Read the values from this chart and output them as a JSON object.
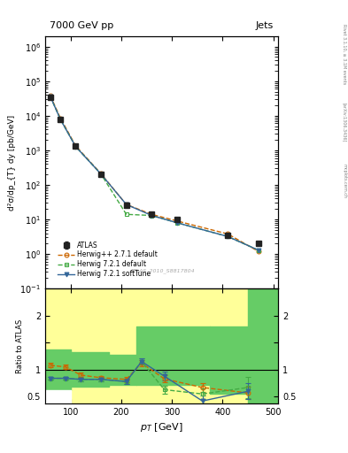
{
  "title_left": "7000 GeV pp",
  "title_right": "Jets",
  "right_label_top": "Rivet 3.1.10, ≥ 3.1M events",
  "right_label_mid": "[arXiv:1306.3436]",
  "right_label_bot": "mcplots.cern.ch",
  "watermark": "ATLAS_2010_S8817804",
  "xlabel": "p_{T} [GeV]",
  "ylabel_main": "d²σ/dp_{T} dy [pb/GeV]",
  "ylabel_ratio": "Ratio to ATLAS",
  "xlim": [
    50,
    510
  ],
  "ylim_main": [
    0.1,
    2000000
  ],
  "ylim_ratio": [
    0.38,
    2.5
  ],
  "atlas_x": [
    60,
    80,
    110,
    160,
    210,
    260,
    310,
    410,
    470
  ],
  "atlas_y": [
    35000,
    8000,
    1300,
    200,
    25,
    14,
    10,
    3.5,
    2.0
  ],
  "atlas_yerr": [
    1500,
    500,
    80,
    10,
    2,
    1.0,
    0.8,
    0.4,
    0.2
  ],
  "herwigpp_x": [
    60,
    80,
    110,
    160,
    210,
    260,
    310,
    410,
    470
  ],
  "herwigpp_y": [
    38000,
    8500,
    1350,
    210,
    27,
    14,
    9,
    3.8,
    1.2
  ],
  "herwig721_x": [
    60,
    80,
    110,
    160,
    210,
    260,
    310,
    410,
    470
  ],
  "herwig721_y": [
    36000,
    7800,
    1280,
    205,
    14,
    13,
    8,
    3.2,
    1.3
  ],
  "herwig721s_x": [
    60,
    80,
    110,
    160,
    210,
    260,
    310,
    410,
    470
  ],
  "herwig721s_y": [
    36000,
    7800,
    1280,
    205,
    27,
    13,
    8,
    3.2,
    1.3
  ],
  "ratio_herwigpp_x": [
    60,
    90,
    120,
    160,
    210,
    240,
    285,
    360,
    450
  ],
  "ratio_herwigpp_y": [
    1.08,
    1.05,
    0.9,
    0.85,
    0.82,
    1.12,
    0.83,
    0.67,
    0.57
  ],
  "ratio_herwigpp_yerr": [
    0.04,
    0.04,
    0.04,
    0.04,
    0.05,
    0.06,
    0.07,
    0.08,
    0.12
  ],
  "ratio_herwig721_x": [
    60,
    90,
    120,
    160,
    210,
    240,
    285,
    360,
    450
  ],
  "ratio_herwig721_y": [
    0.84,
    0.84,
    0.82,
    0.82,
    0.78,
    1.15,
    0.63,
    0.55,
    0.67
  ],
  "ratio_herwig721_yerr": [
    0.03,
    0.03,
    0.03,
    0.03,
    0.05,
    0.06,
    0.07,
    0.1,
    0.2
  ],
  "ratio_herwig721s_x": [
    60,
    90,
    120,
    160,
    210,
    240,
    285,
    360,
    450
  ],
  "ratio_herwig721s_y": [
    0.84,
    0.84,
    0.82,
    0.82,
    0.78,
    1.15,
    0.88,
    0.42,
    0.6
  ],
  "ratio_herwig721s_yerr": [
    0.03,
    0.03,
    0.03,
    0.03,
    0.05,
    0.06,
    0.08,
    0.1,
    0.15
  ],
  "atlas_color": "#222222",
  "herwigpp_color": "#cc6600",
  "herwig721_color": "#44aa44",
  "herwig721s_color": "#336699",
  "yellow_color": "#ffff99",
  "green_color": "#66cc66",
  "legend_atlas": "ATLAS",
  "legend_herwigpp": "Herwig++ 2.7.1 default",
  "legend_herwig721": "Herwig 7.2.1 default",
  "legend_herwig721s": "Herwig 7.2.1 softTune"
}
